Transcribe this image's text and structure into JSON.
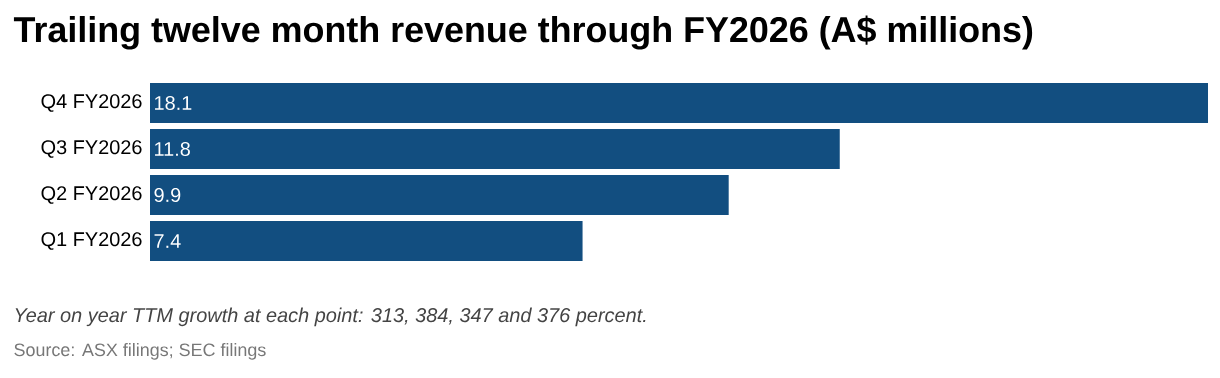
{
  "chart_data": {
    "type": "bar",
    "orientation": "horizontal",
    "title": "Trailing twelve month revenue through FY2026 (A$ millions)",
    "categories": [
      "Q4 FY2026",
      "Q3 FY2026",
      "Q2 FY2026",
      "Q1 FY2026"
    ],
    "values": [
      18.1,
      11.8,
      9.9,
      7.4
    ],
    "color": "#124e80",
    "data_labels": true,
    "xlim": [
      0,
      18.1
    ],
    "annotations": [
      "Year on year TTM growth at each point: 313, 384, 347 and 376 percent.",
      "Source: ASX filings; SEC filings"
    ]
  }
}
